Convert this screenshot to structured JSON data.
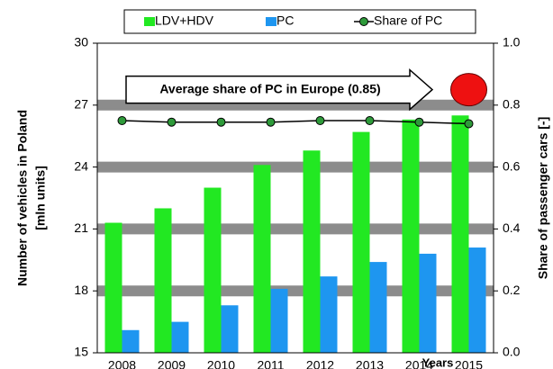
{
  "chart_data": {
    "type": "bar",
    "categories": [
      "2008",
      "2009",
      "2010",
      "2011",
      "2012",
      "2013",
      "2014",
      "2015"
    ],
    "xlabel": "Years",
    "ylabel_lines": [
      "Number of vehicles in Poland",
      "[mln units]"
    ],
    "y2label": "Share of passenger cars [-]",
    "series": [
      {
        "name": "LDV+HDV",
        "color": "#22e822",
        "values": [
          21.3,
          22.0,
          23.0,
          24.1,
          24.8,
          25.7,
          26.3,
          26.5
        ]
      },
      {
        "name": "PC",
        "color": "#1e96f0",
        "values": [
          16.1,
          16.5,
          17.3,
          18.1,
          18.7,
          19.4,
          19.8,
          20.1
        ]
      },
      {
        "name": "Share of PC",
        "type": "line",
        "axis": "y2",
        "color": "#2e9a3a",
        "values": [
          0.75,
          0.745,
          0.745,
          0.745,
          0.75,
          0.75,
          0.745,
          0.74
        ]
      }
    ],
    "ylim": [
      15,
      30
    ],
    "yticks": [
      15,
      18,
      21,
      24,
      27,
      30
    ],
    "y2lim": [
      0,
      1
    ],
    "y2ticks": [
      {
        "value": 0,
        "label": "0.0"
      },
      {
        "value": 0.2,
        "label": "0.2"
      },
      {
        "value": 0.4,
        "label": "0.4"
      },
      {
        "value": 0.6,
        "label": "0.6"
      },
      {
        "value": 0.8,
        "label": "0.8"
      },
      {
        "value": 1,
        "label": "1.0"
      }
    ],
    "grid": true,
    "grid_color": "#8c8c8c",
    "annotation": {
      "text": "Average share of PC in Europe (0.85)",
      "value": 0.85,
      "color": "#ee1111"
    }
  }
}
